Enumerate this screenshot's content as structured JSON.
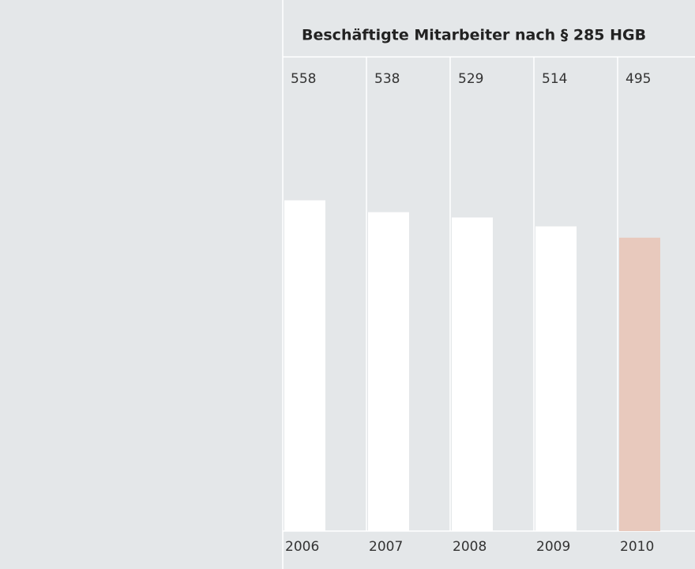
{
  "chart_data": {
    "type": "bar",
    "title": "Beschäftigte Mitarbeiter nach § 285 HGB",
    "categories": [
      "2006",
      "2007",
      "2008",
      "2009",
      "2010"
    ],
    "values": [
      558,
      538,
      529,
      514,
      495
    ],
    "colors": [
      "#ffffff",
      "#ffffff",
      "#ffffff",
      "#ffffff",
      "#e8c9bd"
    ],
    "ylim": [
      0,
      800
    ]
  }
}
